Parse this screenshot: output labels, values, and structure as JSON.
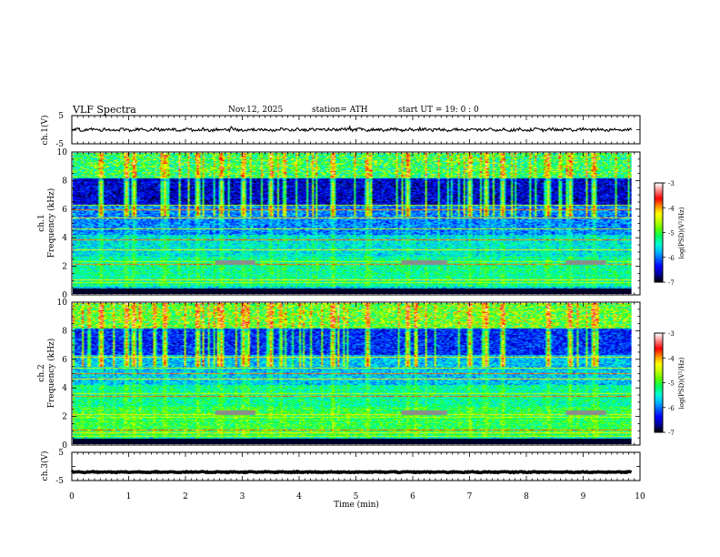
{
  "chart_data": {
    "type": "heatmap",
    "header": {
      "title": "VLF  Spectra",
      "date": "Nov.12, 2025",
      "station": "station= ATH",
      "start": "start  UT  =    19: 0  : 0"
    },
    "x_axis": {
      "label": "Time  (min)",
      "range": [
        0,
        10
      ],
      "ticks": [
        "0",
        "1",
        "2",
        "3",
        "4",
        "5",
        "6",
        "7",
        "8",
        "9",
        "10"
      ],
      "data_end": 9.85
    },
    "panels": [
      {
        "id": "ch1-waveform",
        "type": "line",
        "ylabel": "ch.1(V)",
        "ylim": [
          -5,
          5
        ],
        "ticks": [
          "5",
          "-5"
        ],
        "baseline": 0,
        "amplitude": 0.5
      },
      {
        "id": "ch1-spectrogram",
        "type": "heatmap",
        "ylabel": "ch.1\nFrequency  (kHz)",
        "ylim": [
          0,
          10
        ],
        "ticks": [
          "0",
          "2",
          "4",
          "6",
          "8",
          "10"
        ],
        "horizontal_lines_khz": [
          0.8,
          1.0,
          2.1,
          2.25,
          3.1,
          3.8,
          4.6,
          5.4,
          6.0,
          6.3
        ],
        "spheric_times_min": [
          0.5,
          0.95,
          1.05,
          1.6,
          2.2,
          2.6,
          3.0,
          3.5,
          4.6,
          5.2,
          5.9,
          7.0,
          7.3,
          7.6,
          8.4,
          8.8,
          9.2
        ],
        "gray_segments": [
          [
            2.5,
            3.2
          ],
          [
            5.8,
            6.6
          ],
          [
            8.7,
            9.4
          ]
        ]
      },
      {
        "id": "ch2-spectrogram",
        "type": "heatmap",
        "ylabel": "ch.2\nFrequency  (kHz)",
        "ylim": [
          0,
          10
        ],
        "ticks": [
          "0",
          "2",
          "4",
          "6",
          "8",
          "10"
        ],
        "horizontal_lines_khz": [
          0.5,
          0.8,
          1.0,
          1.9,
          2.1,
          3.4,
          3.6,
          4.6,
          5.0,
          5.4,
          6.2
        ],
        "spheric_times_min": [
          0.5,
          0.95,
          1.05,
          1.6,
          2.2,
          2.6,
          3.0,
          3.5,
          4.6,
          5.2,
          5.9,
          7.0,
          7.3,
          7.6,
          8.4,
          8.8,
          9.2
        ],
        "gray_segments": [
          [
            2.5,
            3.2
          ],
          [
            5.8,
            6.6
          ],
          [
            8.7,
            9.4
          ]
        ]
      },
      {
        "id": "ch3-waveform",
        "type": "line",
        "ylabel": "ch.3(V)",
        "ylim": [
          -5,
          5
        ],
        "ticks": [
          "5",
          "-5"
        ],
        "baseline": -2,
        "amplitude": 0.15
      }
    ],
    "colorbar": {
      "label": "log(PSD)(V²/Hz)",
      "range": [
        -7,
        -3
      ],
      "ticks": [
        "-3",
        "-4",
        "-5",
        "-6",
        "-7"
      ],
      "colors": [
        "#000000",
        "#0000a0",
        "#0000ff",
        "#0060ff",
        "#00c0ff",
        "#00ffd0",
        "#00ff60",
        "#60ff00",
        "#c0ff00",
        "#ffff00",
        "#ff9000",
        "#ff0000",
        "#ff8080",
        "#ffffff"
      ]
    },
    "grid": false,
    "legend": "none"
  }
}
